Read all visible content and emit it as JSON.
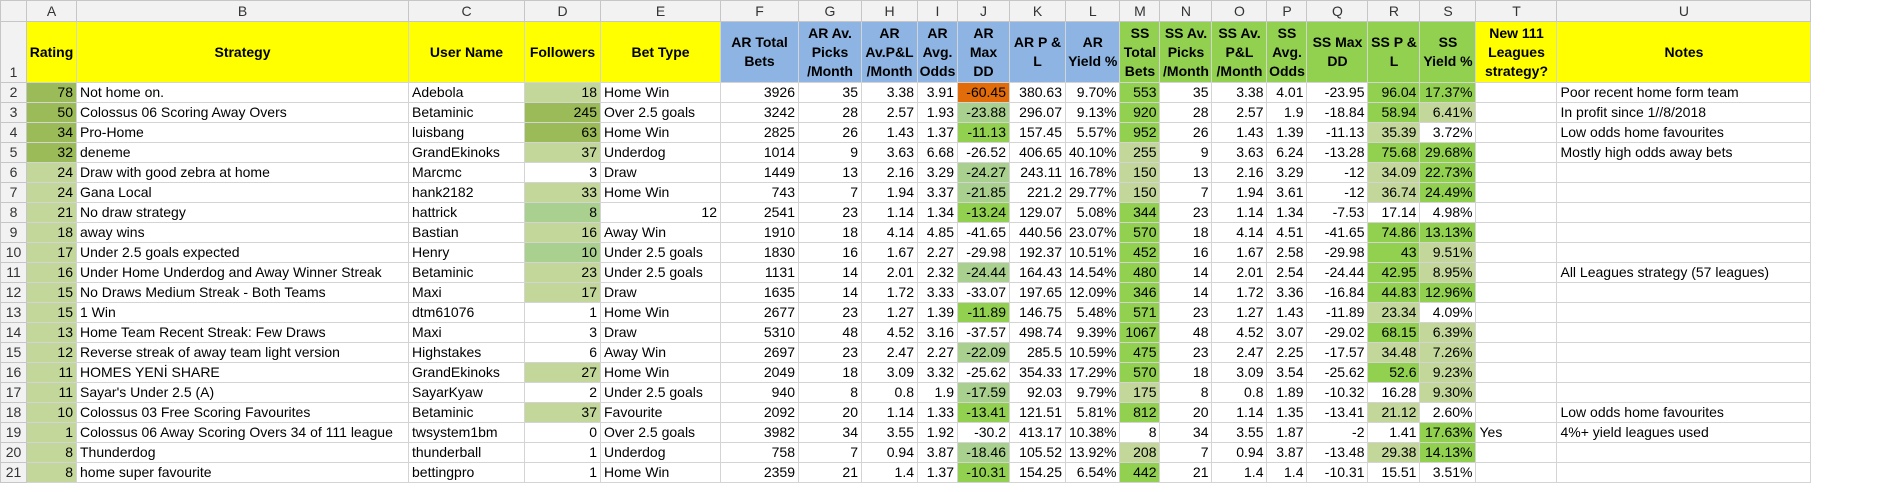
{
  "columns": [
    "A",
    "B",
    "C",
    "D",
    "E",
    "F",
    "G",
    "H",
    "I",
    "J",
    "K",
    "L",
    "M",
    "N",
    "O",
    "P",
    "Q",
    "R",
    "S",
    "T",
    "U"
  ],
  "headers": [
    "Rating",
    "Strategy",
    "User Name",
    "Followers",
    "Bet Type",
    "AR Total Bets",
    "AR Av. Picks /Month",
    "AR Av.P&L /Month",
    "AR Avg. Odds",
    "AR Max DD",
    "AR P & L",
    "AR Yield %",
    "SS Total Bets",
    "SS Av. Picks /Month",
    "SS Av. P&L /Month",
    "SS Avg. Odds",
    "SS Max DD",
    "SS P & L",
    "SS Yield %",
    "New 111 Leagues strategy?",
    "Notes"
  ],
  "rows": [
    {
      "n": "2",
      "c": [
        "78",
        "Not home on.",
        "Adebola",
        "18",
        "Home Win",
        "3926",
        "35",
        "3.38",
        "3.91",
        "-60.45",
        "380.63",
        "9.70%",
        "553",
        "35",
        "3.38",
        "4.01",
        "-23.95",
        "96.04",
        "17.37%",
        "",
        "Poor recent home form team"
      ]
    },
    {
      "n": "3",
      "c": [
        "50",
        "Colossus 06 Scoring Away Overs",
        "Betaminic",
        "245",
        "Over 2.5 goals",
        "3242",
        "28",
        "2.57",
        "1.93",
        "-23.88",
        "296.07",
        "9.13%",
        "920",
        "28",
        "2.57",
        "1.9",
        "-18.84",
        "58.94",
        "6.41%",
        "",
        "In profit since 1//8/2018"
      ]
    },
    {
      "n": "4",
      "c": [
        "34",
        "Pro-Home",
        "luisbang",
        "63",
        "Home Win",
        "2825",
        "26",
        "1.43",
        "1.37",
        "-11.13",
        "157.45",
        "5.57%",
        "952",
        "26",
        "1.43",
        "1.39",
        "-11.13",
        "35.39",
        "3.72%",
        "",
        "Low odds home favourites"
      ]
    },
    {
      "n": "5",
      "c": [
        "32",
        "deneme",
        "GrandEkinoks",
        "37",
        "Underdog",
        "1014",
        "9",
        "3.63",
        "6.68",
        "-26.52",
        "406.65",
        "40.10%",
        "255",
        "9",
        "3.63",
        "6.24",
        "-13.28",
        "75.68",
        "29.68%",
        "",
        "Mostly high odds away bets"
      ]
    },
    {
      "n": "6",
      "c": [
        "24",
        "Draw with good zebra at home",
        "Marcmc",
        "3",
        "Draw",
        "1449",
        "13",
        "2.16",
        "3.29",
        "-24.27",
        "243.11",
        "16.78%",
        "150",
        "13",
        "2.16",
        "3.29",
        "-12",
        "34.09",
        "22.73%",
        "",
        ""
      ]
    },
    {
      "n": "7",
      "c": [
        "24",
        "Gana Local",
        "hank2182",
        "33",
        "Home Win",
        "743",
        "7",
        "1.94",
        "3.37",
        "-21.85",
        "221.2",
        "29.77%",
        "150",
        "7",
        "1.94",
        "3.61",
        "-12",
        "36.74",
        "24.49%",
        "",
        ""
      ]
    },
    {
      "n": "8",
      "c": [
        "21",
        "No draw strategy",
        "hattrick",
        "8",
        "12",
        "2541",
        "23",
        "1.14",
        "1.34",
        "-13.24",
        "129.07",
        "5.08%",
        "344",
        "23",
        "1.14",
        "1.34",
        "-7.53",
        "17.14",
        "4.98%",
        "",
        ""
      ]
    },
    {
      "n": "9",
      "c": [
        "18",
        "away wins",
        "Bastian",
        "16",
        "Away Win",
        "1910",
        "18",
        "4.14",
        "4.85",
        "-41.65",
        "440.56",
        "23.07%",
        "570",
        "18",
        "4.14",
        "4.51",
        "-41.65",
        "74.86",
        "13.13%",
        "",
        ""
      ]
    },
    {
      "n": "10",
      "c": [
        "17",
        "Under 2.5 goals expected",
        "Henry",
        "10",
        "Under 2.5 goals",
        "1830",
        "16",
        "1.67",
        "2.27",
        "-29.98",
        "192.37",
        "10.51%",
        "452",
        "16",
        "1.67",
        "2.58",
        "-29.98",
        "43",
        "9.51%",
        "",
        ""
      ]
    },
    {
      "n": "11",
      "c": [
        "16",
        "Under Home Underdog and Away Winner Streak",
        "Betaminic",
        "23",
        "Under 2.5 goals",
        "1131",
        "14",
        "2.01",
        "2.32",
        "-24.44",
        "164.43",
        "14.54%",
        "480",
        "14",
        "2.01",
        "2.54",
        "-24.44",
        "42.95",
        "8.95%",
        "",
        "All Leagues strategy (57 leagues)"
      ]
    },
    {
      "n": "12",
      "c": [
        "15",
        "No Draws Medium Streak - Both Teams",
        "Maxi",
        "17",
        "Draw",
        "1635",
        "14",
        "1.72",
        "3.33",
        "-33.07",
        "197.65",
        "12.09%",
        "346",
        "14",
        "1.72",
        "3.36",
        "-16.84",
        "44.83",
        "12.96%",
        "",
        ""
      ]
    },
    {
      "n": "13",
      "c": [
        "15",
        "1 Win",
        "dtm61076",
        "1",
        "Home Win",
        "2677",
        "23",
        "1.27",
        "1.39",
        "-11.89",
        "146.75",
        "5.48%",
        "571",
        "23",
        "1.27",
        "1.43",
        "-11.89",
        "23.34",
        "4.09%",
        "",
        ""
      ]
    },
    {
      "n": "14",
      "c": [
        "13",
        "Home Team Recent Streak: Few Draws",
        "Maxi",
        "3",
        "Draw",
        "5310",
        "48",
        "4.52",
        "3.16",
        "-37.57",
        "498.74",
        "9.39%",
        "1067",
        "48",
        "4.52",
        "3.07",
        "-29.02",
        "68.15",
        "6.39%",
        "",
        ""
      ]
    },
    {
      "n": "15",
      "c": [
        "12",
        "Reverse streak of away team light version",
        "Highstakes",
        "6",
        "Away Win",
        "2697",
        "23",
        "2.47",
        "2.27",
        "-22.09",
        "285.5",
        "10.59%",
        "475",
        "23",
        "2.47",
        "2.25",
        "-17.57",
        "34.48",
        "7.26%",
        "",
        ""
      ]
    },
    {
      "n": "16",
      "c": [
        "11",
        "HOMES YENİ SHARE",
        "GrandEkinoks",
        "27",
        "Home Win",
        "2049",
        "18",
        "3.09",
        "3.32",
        "-25.62",
        "354.33",
        "17.29%",
        "570",
        "18",
        "3.09",
        "3.54",
        "-25.62",
        "52.6",
        "9.23%",
        "",
        ""
      ]
    },
    {
      "n": "17",
      "c": [
        "11",
        "Sayar's Under 2.5 (A)",
        "SayarKyaw",
        "2",
        "Under 2.5 goals",
        "940",
        "8",
        "0.8",
        "1.9",
        "-17.59",
        "92.03",
        "9.79%",
        "175",
        "8",
        "0.8",
        "1.89",
        "-10.32",
        "16.28",
        "9.30%",
        "",
        ""
      ]
    },
    {
      "n": "18",
      "c": [
        "10",
        "Colossus 03 Free Scoring Favourites",
        "Betaminic",
        "37",
        "Favourite",
        "2092",
        "20",
        "1.14",
        "1.33",
        "-13.41",
        "121.51",
        "5.81%",
        "812",
        "20",
        "1.14",
        "1.35",
        "-13.41",
        "21.12",
        "2.60%",
        "",
        "Low odds home favourites"
      ]
    },
    {
      "n": "19",
      "c": [
        "1",
        "Colossus 06 Away Scoring Overs 34 of 111 league",
        "twsystem1bm",
        "0",
        "Over 2.5 goals",
        "3982",
        "34",
        "3.55",
        "1.92",
        "-30.2",
        "413.17",
        "10.38%",
        "8",
        "34",
        "3.55",
        "1.87",
        "-2",
        "1.41",
        "17.63%",
        "Yes",
        "4%+ yield leagues used"
      ]
    },
    {
      "n": "20",
      "c": [
        "8",
        "Thunderdog",
        "thunderball",
        "1",
        "Underdog",
        "758",
        "7",
        "0.94",
        "3.87",
        "-18.46",
        "105.52",
        "13.92%",
        "208",
        "7",
        "0.94",
        "3.87",
        "-13.48",
        "29.38",
        "14.13%",
        "",
        ""
      ]
    },
    {
      "n": "21",
      "c": [
        "8",
        "home super favourite",
        "bettingpro",
        "1",
        "Home Win",
        "2359",
        "21",
        "1.4",
        "1.37",
        "-10.31",
        "154.25",
        "6.54%",
        "442",
        "21",
        "1.4",
        "1.4",
        "-10.31",
        "15.51",
        "3.51%",
        "",
        ""
      ]
    }
  ]
}
